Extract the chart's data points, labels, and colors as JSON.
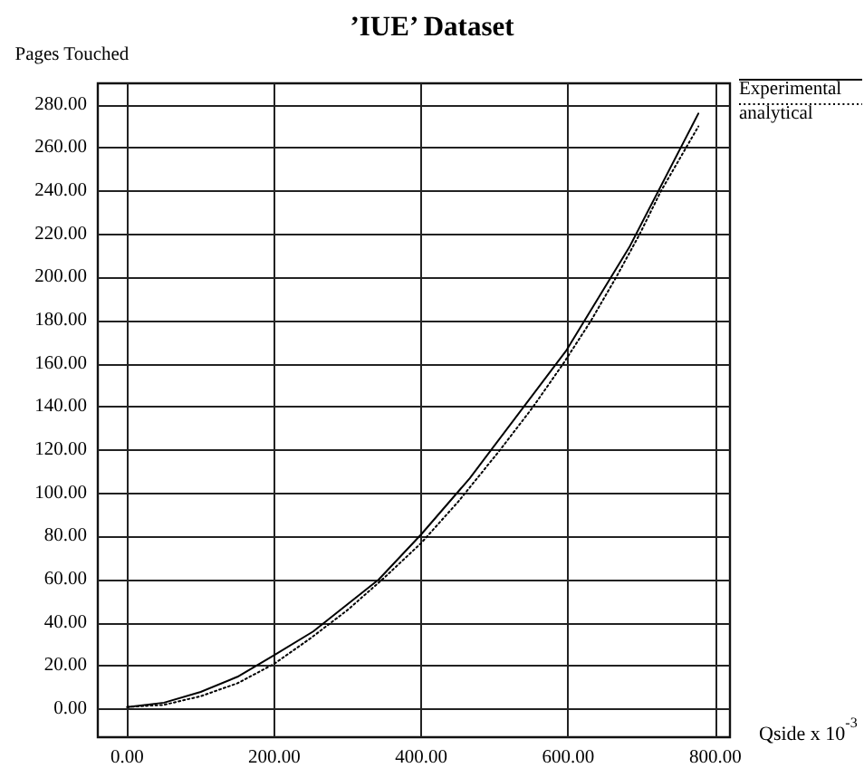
{
  "chart_data": {
    "type": "line",
    "title": "’IUE’ Dataset",
    "xlabel": "Qside x 10$^{-3}$",
    "ylabel": "Pages Touched",
    "xlim": [
      -40,
      820
    ],
    "xticks": [
      {
        "value": 0,
        "label": "0.00"
      },
      {
        "value": 200,
        "label": "200.00"
      },
      {
        "value": 400,
        "label": "400.00"
      },
      {
        "value": 600,
        "label": "600.00"
      },
      {
        "value": 800,
        "label": "800.00"
      }
    ],
    "ylim": [
      -13,
      290
    ],
    "yticks": [
      {
        "value": 0,
        "label": "0.00"
      },
      {
        "value": 20,
        "label": "20.00"
      },
      {
        "value": 40,
        "label": "40.00"
      },
      {
        "value": 60,
        "label": "60.00"
      },
      {
        "value": 80,
        "label": "80.00"
      },
      {
        "value": 100,
        "label": "100.00"
      },
      {
        "value": 120,
        "label": "120.00"
      },
      {
        "value": 140,
        "label": "140.00"
      },
      {
        "value": 160,
        "label": "160.00"
      },
      {
        "value": 180,
        "label": "180.00"
      },
      {
        "value": 200,
        "label": "200.00"
      },
      {
        "value": 220,
        "label": "220.00"
      },
      {
        "value": 240,
        "label": "240.00"
      },
      {
        "value": 260,
        "label": "260.00"
      },
      {
        "value": 280,
        "label": "280.00"
      }
    ],
    "series": [
      {
        "name": "Experimental",
        "color": "#000000",
        "line_style": "solid",
        "x": [
          0,
          50,
          100,
          150,
          200,
          253,
          342,
          400,
          466,
          597,
          683,
          777
        ],
        "values": [
          1,
          3,
          8,
          15,
          25,
          36,
          60,
          81,
          107,
          166,
          214,
          276
        ]
      },
      {
        "name": "analytical",
        "color": "#000000",
        "line_style": "dotted",
        "x": [
          0,
          50,
          100,
          150,
          200,
          250,
          300,
          350,
          400,
          450,
          507,
          552,
          593,
          631,
          665,
          697,
          726,
          760,
          777
        ],
        "values": [
          1,
          2,
          6,
          12,
          21,
          33,
          46,
          61,
          77,
          96,
          120,
          140,
          160,
          180,
          200,
          220,
          240,
          260,
          270
        ]
      }
    ],
    "grid": true,
    "legend": "top right",
    "marker": "none"
  }
}
